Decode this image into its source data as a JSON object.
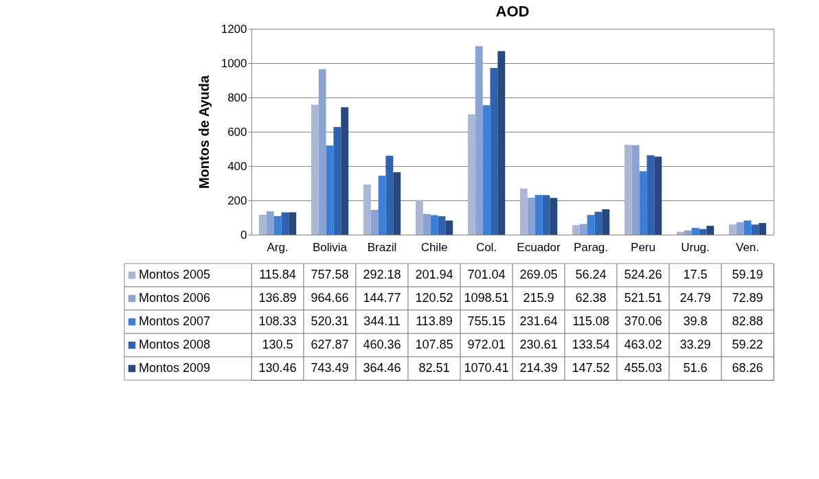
{
  "chart_data": {
    "type": "bar",
    "title": "AOD",
    "ylabel": "Montos de Ayuda",
    "categories": [
      "Arg.",
      "Bolivia",
      "Brazil",
      "Chile",
      "Col.",
      "Ecuador",
      "Parag.",
      "Peru",
      "Urug.",
      "Ven."
    ],
    "series": [
      {
        "name": "Montos 2005",
        "color": "#aab7d4",
        "values": [
          115.84,
          757.58,
          292.18,
          201.94,
          701.04,
          269.05,
          56.24,
          524.26,
          17.5,
          59.19
        ]
      },
      {
        "name": "Montos 2006",
        "color": "#8aa3d3",
        "values": [
          136.89,
          964.66,
          144.77,
          120.52,
          1098.51,
          215.9,
          62.38,
          521.51,
          24.79,
          72.89
        ]
      },
      {
        "name": "Montos 2007",
        "color": "#3c7fd9",
        "values": [
          108.33,
          520.31,
          344.11,
          113.89,
          755.15,
          231.64,
          115.08,
          370.06,
          39.8,
          82.88
        ]
      },
      {
        "name": "Montos 2008",
        "color": "#2f63b1",
        "values": [
          130.5,
          627.87,
          460.36,
          107.85,
          972.01,
          230.61,
          133.54,
          463.02,
          33.29,
          59.22
        ]
      },
      {
        "name": "Montos 2009",
        "color": "#264a80",
        "values": [
          130.46,
          743.49,
          364.46,
          82.51,
          1070.41,
          214.39,
          147.52,
          455.03,
          51.6,
          68.26
        ]
      }
    ],
    "ylim": [
      0,
      1200
    ],
    "yticks": [
      0,
      200,
      400,
      600,
      800,
      1000,
      1200
    ],
    "grid": "y",
    "legend": "bottom",
    "data_labels": true
  }
}
